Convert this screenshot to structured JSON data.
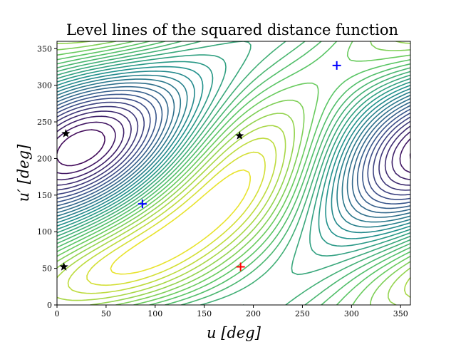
{
  "chart_data": {
    "type": "contour",
    "title": "Level lines of the squared distance function",
    "xlabel": "u [deg]",
    "ylabel": "u′ [deg]",
    "xlim": [
      0,
      360
    ],
    "ylim": [
      0,
      360
    ],
    "xticks": [
      "0",
      "50",
      "100",
      "150",
      "200",
      "250",
      "300",
      "350"
    ],
    "yticks": [
      "0",
      "50",
      "100",
      "150",
      "200",
      "250",
      "300",
      "350"
    ],
    "colormap": [
      "#440154",
      "#3b528b",
      "#21918c",
      "#5ec962",
      "#fde725"
    ],
    "markers": [
      {
        "label": "star",
        "color": "#000000",
        "x": 9,
        "y": 234
      },
      {
        "label": "star",
        "color": "#000000",
        "x": 7,
        "y": 52
      },
      {
        "label": "star",
        "color": "#000000",
        "x": 186,
        "y": 231
      },
      {
        "label": "plus",
        "color": "#0000ff",
        "x": 87,
        "y": 138
      },
      {
        "label": "plus",
        "color": "#0000ff",
        "x": 285,
        "y": 327
      },
      {
        "label": "plus",
        "color": "#ff0000",
        "x": 187,
        "y": 52
      }
    ]
  }
}
